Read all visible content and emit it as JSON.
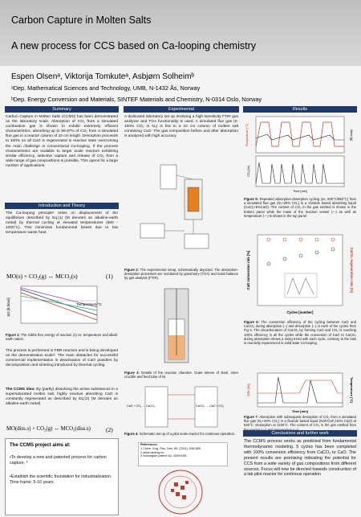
{
  "header": {
    "title": "Carbon Capture in Molten Salts",
    "subtitle": "A new process for CCS based on Ca-looping chemistry",
    "authors": "Espen Olsenᵃ, Viktorija Tomkuteᵃ, Asbjørn Solheimᵇ",
    "affiliations": [
      "ᵃDep. Mathematical Sciences and Technology, UMB, N-1432 Ås, Norway",
      "ᵇDep. Energy Conversion and Materials, SINTEF Materials and Chemistry, N-0314 Oslo, Norway"
    ]
  },
  "summary": {
    "heading": "Summary",
    "text": "Carbon Capture in Molten Salts (CCMS) has been demonstrated on the laboratory scale. Absorption of CO₂ from a simulated combustion gas is shown to exhibit extremely efficient characteristics, absorbing up to 99.97% of CO₂ from a simulated flue gas in a reactor column of 10 cm length. Desorption proceeds to 100% so all CaO is regenerated in reactive state overcoming the main challenge in conventional Ca-looping. If the process characteristics are scalable to larger scale reactors exhibiting similar efficiency, selective capture and release of CO₂ from a wide range of gas compositions is possible. This opens for a large number of applications."
  },
  "introduction": {
    "heading": "Introduction and Theory",
    "text": "The Ca-looping principle¹ relies on displacement of the equilibrium described by Eq.(1) (M denotes an alkaline-earth metal) by thermal cycling at elevated temperatures (650 - 1000°C). This minimizes fundamental losses due to low temperature waste heat.",
    "equation": "MO(s) + CO₂(g) ↔ MCO₃(s)",
    "equation_number": "(1)",
    "figure_y_label": "ΔG [kJ/mol]",
    "figure_x_label": "Temperature/°C",
    "figure_label": "Figure 1:",
    "figure_caption": "The Gibbs free energy of reaction (1) vs. temperature and alkali-earth cation.",
    "text2": "The process is performed in FBR-reactors and is being developed on the demonstration scale². The main obstacles for successful commercial implementation is deactivation of CaO powders by decomposition and sintering introduced by thermal cycling.",
    "idea_lead": "The CCMS idea:",
    "idea_text": "By (partly) dissolving the active substances in a supersaturated molten salt, highly reactive absorbing CaO is constantly regenerated as described by Eq.(2) (M denotes an alkaline-earth metal)",
    "equation2": "MO(diss.s) + CO₂(g) ↔ MCO₃(diss.s)",
    "equation2_number": "(2)"
  },
  "aims": {
    "heading": "The CCMS project aims at:",
    "bullets": [
      "To develop a new and patented process for carbon capture. ³",
      "Establish the scientific foundation for industrialization. Time frame: 5-10 years."
    ]
  },
  "experimental": {
    "heading": "Experimental",
    "text": "A dedicated laboratory set up involving a high-sensitivity FTIR gas analyzer and TGA functionality is used. A simulated flue gas (0-100% CO₂ in N₂) is fed to a 10 cm column of molten salt containing CaO. The gas composition before and after absorption is analyzed with high accuracy",
    "figure2_label": "Figure 2:",
    "figure2_caption": "The experimental setup, schematically depicted. The absorption-desorption processes are monitored by gravimetry (TGA) and mass balance by gas analysis (FTIR).",
    "figure3_label": "Figure 3:",
    "figure3_caption": "Details of the reaction chamber. Outer sleeve of steel, inner crucible and feed tube of Ni.",
    "figure4_label": "Figure 4:",
    "figure4_caption": "Schematic set up of a pilot scale reactor for continous operation.",
    "figure4_left": "CaO + CO₂ → CaCO₃",
    "figure4_right": "CaCO₃ → CaO + CO₂",
    "references_heading": "References:",
    "references": [
      "1 Chem. Eng. Res. Des. 89, (2011), 836-855",
      "2 www.caoling.eu",
      "3 Norwegian patent No. 20091081"
    ]
  },
  "results": {
    "heading": "Results",
    "figure5_y_left": "Temperature [°C]",
    "figure5_y_right": "Mass [g]",
    "figure5_y_bottom": "CO₂ [%]",
    "figure5_x": "Time [min]",
    "figure5_label": "Figure 5:",
    "figure5_caption": "Repeated absorption-desorption cycling (4x, 600°C/950°C) from a simulated flue gas (N₂+20% CO₂) in a chloride based absorbing liquid (CaCl₂+5%CaO). The content of CO₂ in the gas emitted is shown in the bottom panel while the mass of the reaction vessel (—) as well as temperature (—) is shown in the top panel.",
    "figure6_y_left": "CaO conversion rate [%]",
    "figure6_y_right": "CaCO₃ regeneration rate [%]",
    "figure6_x": "Cycles [number]",
    "figure6_label": "Figure 6:",
    "figure6_caption": "The conversion efficiency of the cycling between CaO and CaCO₃ during absorption (○) and desorption (○) in each of the cycles from Fig 5. The decarbonation of CaCO₃ by forming CaO and CO₂ is reaching 100% efficiency in all the cycles while the conversion of CaO to CaCO₃ during absorption shows a rising trend with each cycle, contrary to the loss in reactivity experienced in solid state Ca-looping.",
    "figure7_y_left": "CO₂ [%]",
    "figure7_y_right": "Temperature [°C]",
    "figure7_x": "Time [min]",
    "figure7_label": "Figure 7:",
    "figure7_caption": "Absorption with subsequent desorption of CO₂ from a simulated flue gas (N₂+20% CO₂) in a fluoride based liquid (NaF/CaF₂/10% CaO) at 820°C. Desorption at 1150°C. The content of CO₂ in the gas emitted from the reactor (—) and temperature (—)."
  },
  "conclusions": {
    "heading": "Conclusions and further work",
    "text": "The CCMS process works as predicted from fundamental thermodynamic modeling. 5 cycles has been completed with 100% conversion efficiency from CaCO₃ to CaO. The present results are promising indicating the potential for CCS from a wide variety of gas compositions from different sources. Focus will now be directed towards construction of a lab pilot reactor for continous operation"
  }
}
